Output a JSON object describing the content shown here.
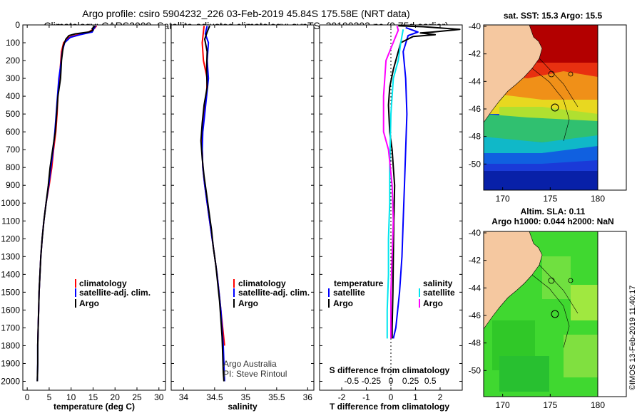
{
  "header": {
    "title_line1": "Argo profile: csiro 5904232_226 03-Feb-2019 45.84S 175.58E (NRT data)",
    "title_line2": "Climatology: CARS2009. Satellite-adjusted climatology: synTS_20190203.nc (0.75d earlier)"
  },
  "depth_axis": {
    "ticks": [
      0,
      100,
      200,
      300,
      400,
      500,
      600,
      700,
      800,
      900,
      1000,
      1100,
      1200,
      1300,
      1400,
      1500,
      1600,
      1700,
      1800,
      1900,
      2000
    ],
    "range": [
      0,
      2050
    ]
  },
  "colors": {
    "climatology": "#ff0000",
    "satellite": "#0000ff",
    "argo": "#000000",
    "satellite_salinity": "#00e5ee",
    "argo_salinity": "#ff00ff",
    "land": "#f5c8a0"
  },
  "chart_data": [
    {
      "id": "temperature",
      "type": "line",
      "xlabel": "temperature (deg C)",
      "ylabel": "",
      "xlim": [
        -1,
        31.5
      ],
      "xticks": [
        0,
        5,
        10,
        15,
        20,
        25,
        30
      ],
      "ylim": [
        0,
        2050
      ],
      "legend": [
        "climatology",
        "satellite-adj. clim.",
        "Argo"
      ],
      "series": [
        {
          "name": "climatology",
          "color": "#ff0000",
          "points": [
            [
              15.8,
              5
            ],
            [
              15.3,
              20
            ],
            [
              14,
              40
            ],
            [
              11.5,
              55
            ],
            [
              9.5,
              70
            ],
            [
              8.3,
              100
            ],
            [
              7.8,
              150
            ],
            [
              7.5,
              250
            ],
            [
              7.3,
              300
            ],
            [
              7.0,
              400
            ],
            [
              6.8,
              500
            ],
            [
              6.5,
              600
            ],
            [
              6,
              700
            ],
            [
              5.6,
              800
            ],
            [
              5,
              900
            ],
            [
              4.3,
              1000
            ],
            [
              3.8,
              1100
            ],
            [
              3.4,
              1200
            ],
            [
              3.1,
              1300
            ],
            [
              2.9,
              1400
            ],
            [
              2.7,
              1500
            ],
            [
              2.6,
              1600
            ],
            [
              2.5,
              1700
            ],
            [
              2.4,
              1800
            ]
          ]
        },
        {
          "name": "satellite-adj. clim.",
          "color": "#0000ff",
          "points": [
            [
              15.6,
              5
            ],
            [
              15.2,
              20
            ],
            [
              14.8,
              40
            ],
            [
              12,
              55
            ],
            [
              9.8,
              70
            ],
            [
              8.5,
              100
            ],
            [
              8,
              150
            ],
            [
              7.5,
              250
            ],
            [
              7.2,
              300
            ],
            [
              6.9,
              400
            ],
            [
              6.6,
              500
            ],
            [
              6.3,
              600
            ],
            [
              5.9,
              700
            ],
            [
              5.4,
              800
            ],
            [
              4.9,
              900
            ],
            [
              4.3,
              1000
            ],
            [
              3.8,
              1100
            ],
            [
              3.4,
              1200
            ],
            [
              3.1,
              1300
            ],
            [
              2.9,
              1400
            ],
            [
              2.7,
              1500
            ],
            [
              2.6,
              1600
            ],
            [
              2.5,
              1700
            ],
            [
              2.4,
              1800
            ],
            [
              2.4,
              1900
            ],
            [
              2.3,
              2000
            ]
          ]
        },
        {
          "name": "Argo",
          "color": "#000000",
          "points": [
            [
              15.4,
              5
            ],
            [
              15.3,
              10
            ],
            [
              14.8,
              20
            ],
            [
              15,
              30
            ],
            [
              14,
              40
            ],
            [
              11,
              50
            ],
            [
              9.5,
              60
            ],
            [
              8.8,
              80
            ],
            [
              8.2,
              120
            ],
            [
              7.8,
              200
            ],
            [
              7.6,
              300
            ],
            [
              7.0,
              400
            ],
            [
              6.7,
              500
            ],
            [
              6.4,
              600
            ],
            [
              5.8,
              700
            ],
            [
              5.2,
              800
            ],
            [
              4.8,
              900
            ],
            [
              4.3,
              1000
            ],
            [
              3.8,
              1100
            ],
            [
              3.4,
              1200
            ],
            [
              3.1,
              1300
            ],
            [
              2.9,
              1400
            ],
            [
              2.7,
              1500
            ],
            [
              2.6,
              1600
            ],
            [
              2.5,
              1700
            ],
            [
              2.4,
              1800
            ],
            [
              2.4,
              1900
            ],
            [
              2.3,
              2000
            ]
          ]
        }
      ]
    },
    {
      "id": "salinity",
      "type": "line",
      "xlabel": "salinity",
      "ylabel": "",
      "xlim": [
        33.8,
        36.1
      ],
      "xticks": [
        34,
        34.5,
        35,
        35.5,
        36
      ],
      "ylim": [
        0,
        2050
      ],
      "legend": [
        "climatology",
        "satellite-adj. clim.",
        "Argo"
      ],
      "series": [
        {
          "name": "climatology",
          "color": "#ff0000",
          "points": [
            [
              34.33,
              5
            ],
            [
              34.3,
              100
            ],
            [
              34.32,
              200
            ],
            [
              34.38,
              300
            ],
            [
              34.37,
              400
            ],
            [
              34.32,
              500
            ],
            [
              34.3,
              600
            ],
            [
              34.3,
              700
            ],
            [
              34.31,
              800
            ],
            [
              34.34,
              900
            ],
            [
              34.38,
              1000
            ],
            [
              34.42,
              1100
            ],
            [
              34.46,
              1200
            ],
            [
              34.5,
              1300
            ],
            [
              34.54,
              1400
            ],
            [
              34.57,
              1500
            ],
            [
              34.6,
              1600
            ],
            [
              34.63,
              1700
            ],
            [
              34.66,
              1800
            ]
          ]
        },
        {
          "name": "satellite-adj. clim.",
          "color": "#0000ff",
          "points": [
            [
              34.38,
              5
            ],
            [
              34.35,
              50
            ],
            [
              34.4,
              100
            ],
            [
              34.38,
              200
            ],
            [
              34.4,
              300
            ],
            [
              34.37,
              400
            ],
            [
              34.34,
              500
            ],
            [
              34.31,
              600
            ],
            [
              34.3,
              700
            ],
            [
              34.31,
              800
            ],
            [
              34.34,
              900
            ],
            [
              34.38,
              1000
            ],
            [
              34.42,
              1100
            ],
            [
              34.46,
              1200
            ],
            [
              34.5,
              1300
            ],
            [
              34.54,
              1400
            ],
            [
              34.57,
              1500
            ],
            [
              34.6,
              1600
            ],
            [
              34.62,
              1700
            ],
            [
              34.64,
              1800
            ],
            [
              34.65,
              1900
            ],
            [
              34.66,
              2000
            ]
          ]
        },
        {
          "name": "Argo",
          "color": "#000000",
          "points": [
            [
              34.42,
              5
            ],
            [
              34.38,
              40
            ],
            [
              34.34,
              80
            ],
            [
              34.38,
              150
            ],
            [
              34.37,
              250
            ],
            [
              34.38,
              350
            ],
            [
              34.33,
              450
            ],
            [
              34.3,
              550
            ],
            [
              34.28,
              650
            ],
            [
              34.3,
              750
            ],
            [
              34.33,
              850
            ],
            [
              34.37,
              950
            ],
            [
              34.41,
              1050
            ],
            [
              34.45,
              1150
            ],
            [
              34.48,
              1250
            ],
            [
              34.52,
              1350
            ],
            [
              34.55,
              1450
            ],
            [
              34.58,
              1550
            ],
            [
              34.6,
              1650
            ],
            [
              34.62,
              1750
            ],
            [
              34.63,
              1850
            ],
            [
              34.64,
              1950
            ],
            [
              34.65,
              2000
            ]
          ]
        }
      ]
    },
    {
      "id": "difference",
      "type": "line",
      "xlabel": "T difference from climatology",
      "xlabel2": "S difference from climatology",
      "xlim": [
        -2.9,
        2.9
      ],
      "xticks": [
        -2,
        -1,
        0,
        1,
        2
      ],
      "xtick_labels": [
        "-2",
        "-1",
        "0",
        "1",
        "2"
      ],
      "sticks_labels": [
        "-0.5",
        "-0.25",
        "0",
        "0.25",
        "0.5"
      ],
      "ylim": [
        0,
        2050
      ],
      "legend_left_title": "temperature",
      "legend_right_title": "salinity",
      "legend": [
        "satellite",
        "Argo",
        "satellite",
        "Argo"
      ],
      "series": [
        {
          "name": "T satellite",
          "color": "#0000ff",
          "points": [
            [
              0.6,
              15
            ],
            [
              1.1,
              40
            ],
            [
              0.7,
              60
            ],
            [
              0.5,
              150
            ],
            [
              0.6,
              300
            ],
            [
              0.65,
              500
            ],
            [
              0.6,
              700
            ],
            [
              0.55,
              900
            ],
            [
              0.5,
              1100
            ],
            [
              0.45,
              1300
            ],
            [
              0.35,
              1500
            ],
            [
              0.2,
              1700
            ],
            [
              0.1,
              1760
            ]
          ]
        },
        {
          "name": "T Argo",
          "color": "#000000",
          "points": [
            [
              0.3,
              5
            ],
            [
              1.3,
              10
            ],
            [
              2.8,
              25
            ],
            [
              1.7,
              40
            ],
            [
              1.2,
              45
            ],
            [
              1.8,
              55
            ],
            [
              0.9,
              65
            ],
            [
              0.4,
              100
            ],
            [
              0.3,
              150
            ],
            [
              0.1,
              250
            ],
            [
              -0.05,
              350
            ],
            [
              -0.1,
              450
            ],
            [
              -0.05,
              600
            ],
            [
              0.05,
              700
            ],
            [
              0.1,
              800
            ],
            [
              0.15,
              900
            ],
            [
              0.12,
              1100
            ],
            [
              0.1,
              1300
            ],
            [
              0.08,
              1500
            ],
            [
              0.05,
              1700
            ],
            [
              0.05,
              1760
            ]
          ]
        },
        {
          "name": "S satellite",
          "color": "#00e5ee",
          "points": [
            [
              0.5,
              25
            ],
            [
              0.4,
              100
            ],
            [
              0.3,
              200
            ],
            [
              0.1,
              300
            ],
            [
              0.0,
              500
            ],
            [
              -0.05,
              800
            ],
            [
              -0.05,
              1000
            ],
            [
              -0.1,
              1200
            ],
            [
              -0.1,
              1400
            ],
            [
              -0.15,
              1600
            ],
            [
              -0.15,
              1760
            ]
          ]
        },
        {
          "name": "S Argo",
          "color": "#ff00ff",
          "points": [
            [
              0.25,
              5
            ],
            [
              0.3,
              30
            ],
            [
              0.15,
              80
            ],
            [
              -0.2,
              200
            ],
            [
              -0.3,
              400
            ],
            [
              -0.3,
              600
            ],
            [
              -0.1,
              700
            ],
            [
              0.05,
              900
            ],
            [
              0.1,
              1100
            ],
            [
              0.05,
              1300
            ],
            [
              0.0,
              1500
            ],
            [
              0.0,
              1760
            ]
          ]
        }
      ]
    }
  ],
  "legend_labels": {
    "climatology": "climatology",
    "satellite_adj": "satellite-adj. clim.",
    "argo": "Argo",
    "temperature": "temperature",
    "salinity": "salinity",
    "satellite": "satellite"
  },
  "credits": {
    "line1": "Argo Australia",
    "line2": "PI: Steve Rintoul"
  },
  "maps": {
    "sst_title": "sat. SST: 15.3 Argo: 15.5",
    "sla_title1": "Altim. SLA: 0.11",
    "sla_title2": "Argo h1000: 0.044 h2000: NaN",
    "lat_ticks": [
      "-40",
      "-42",
      "-44",
      "-46",
      "-48",
      "-50"
    ],
    "lon_ticks": [
      "170",
      "175",
      "180"
    ]
  },
  "footer": {
    "stamp": "©IMOS 13-Feb-2019 11:40:17"
  }
}
